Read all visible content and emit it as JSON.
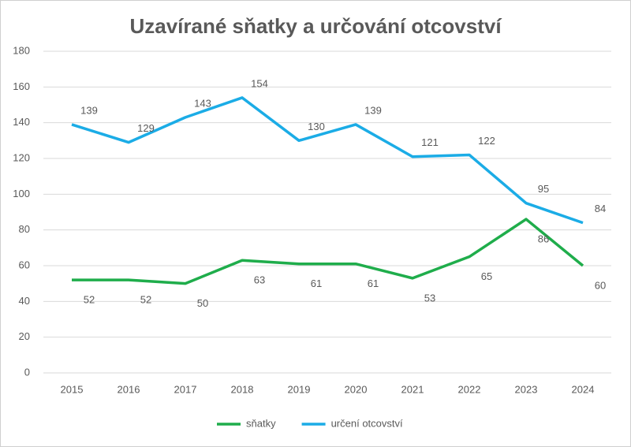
{
  "chart_data": {
    "type": "line",
    "title": "Uzavírané sňatky a určování otcovství",
    "categories": [
      "2015",
      "2016",
      "2017",
      "2018",
      "2019",
      "2020",
      "2021",
      "2022",
      "2023",
      "2024"
    ],
    "series": [
      {
        "name": "sňatky",
        "color": "#1fad4b",
        "values": [
          52,
          52,
          50,
          63,
          61,
          61,
          53,
          65,
          86,
          60
        ]
      },
      {
        "name": "určení otcovství",
        "color": "#1bace6",
        "values": [
          139,
          129,
          143,
          154,
          130,
          139,
          121,
          122,
          95,
          84
        ]
      }
    ],
    "ylim": [
      0,
      180
    ],
    "yticks": [
      0,
      20,
      40,
      60,
      80,
      100,
      120,
      140,
      160,
      180
    ],
    "grid": true,
    "legend": "bottom"
  }
}
